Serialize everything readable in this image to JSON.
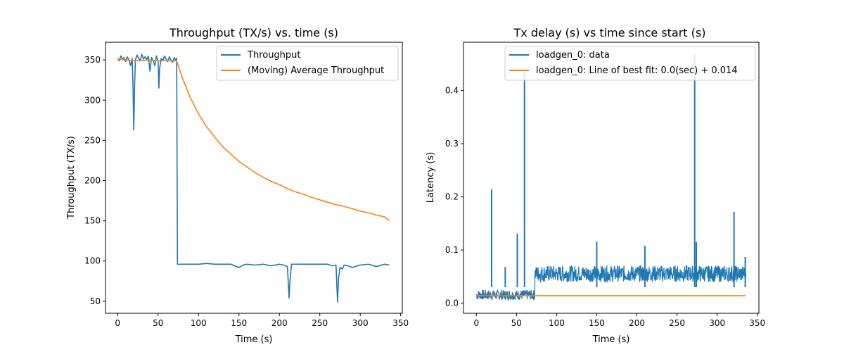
{
  "chart_data": [
    {
      "type": "line",
      "title": "Throughput (TX/s) vs. time (s)",
      "xlabel": "Time (s)",
      "ylabel": "Throughput (TX/s)",
      "xlim": [
        -15,
        352
      ],
      "ylim": [
        35,
        372
      ],
      "xticks": [
        0,
        50,
        100,
        150,
        200,
        250,
        300,
        350
      ],
      "yticks": [
        50,
        100,
        150,
        200,
        250,
        300,
        350
      ],
      "legend_position": "top-right",
      "series": [
        {
          "name": "Throughput",
          "color": "#1f77b4",
          "x": [
            0,
            2,
            4,
            6,
            8,
            10,
            12,
            14,
            16,
            18,
            19,
            20,
            21,
            22,
            24,
            26,
            28,
            30,
            32,
            34,
            36,
            38,
            40,
            42,
            44,
            46,
            48,
            50,
            51,
            52,
            54,
            56,
            58,
            60,
            62,
            64,
            66,
            68,
            70,
            72,
            73,
            74,
            80,
            90,
            100,
            110,
            120,
            130,
            140,
            145,
            150,
            155,
            160,
            170,
            180,
            190,
            200,
            205,
            210,
            211,
            212,
            213,
            215,
            220,
            230,
            240,
            250,
            260,
            265,
            270,
            271,
            272,
            273,
            275,
            278,
            280,
            285,
            290,
            300,
            310,
            320,
            330,
            336
          ],
          "y": [
            352,
            349,
            355,
            351,
            353,
            348,
            354,
            350,
            343,
            352,
            318,
            263,
            320,
            350,
            356,
            352,
            349,
            357,
            351,
            354,
            350,
            355,
            336,
            353,
            349,
            343,
            355,
            348,
            315,
            340,
            352,
            349,
            355,
            351,
            348,
            354,
            350,
            347,
            353,
            349,
            352,
            96,
            96,
            96,
            96,
            97,
            96,
            96,
            96,
            94,
            92,
            95,
            96,
            95,
            96,
            94,
            96,
            95,
            93,
            72,
            54,
            75,
            96,
            96,
            96,
            96,
            96,
            96,
            94,
            95,
            70,
            49,
            78,
            92,
            90,
            95,
            94,
            92,
            95,
            96,
            93,
            96,
            95
          ]
        },
        {
          "name": "(Moving) Average Throughput",
          "color": "#ff7f0e",
          "x": [
            0,
            10,
            20,
            30,
            40,
            50,
            60,
            70,
            73,
            80,
            90,
            100,
            110,
            120,
            130,
            140,
            150,
            160,
            170,
            180,
            190,
            200,
            210,
            220,
            230,
            240,
            250,
            260,
            270,
            280,
            290,
            300,
            310,
            320,
            330,
            336
          ],
          "y": [
            351,
            350,
            349,
            349,
            350,
            349,
            349,
            349,
            349,
            328,
            303,
            283,
            267,
            254,
            242,
            233,
            224,
            217,
            210,
            204,
            199,
            195,
            190,
            186,
            183,
            179,
            176,
            173,
            170,
            168,
            165,
            162,
            160,
            157,
            155,
            150
          ]
        }
      ]
    },
    {
      "type": "line",
      "title": "Tx delay (s) vs time since start (s)",
      "xlabel": "Time (s)",
      "ylabel": "Latency (s)",
      "xlim": [
        -16,
        352
      ],
      "ylim": [
        -0.019,
        0.491
      ],
      "xticks": [
        0,
        50,
        100,
        150,
        200,
        250,
        300,
        350
      ],
      "yticks": [
        0.0,
        0.1,
        0.2,
        0.3,
        0.4
      ],
      "ytick_labels": [
        "0.0",
        "0.1",
        "0.2",
        "0.3",
        "0.4"
      ],
      "legend_position": "top-right",
      "series": [
        {
          "name": "loadgen_0: data",
          "color": "#1f77b4",
          "band": [
            {
              "x0": 0,
              "x1": 73,
              "ymin": 0.006,
              "ymax": 0.025
            },
            {
              "x0": 73,
              "x1": 336,
              "ymin": 0.04,
              "ymax": 0.071
            }
          ],
          "spikes": [
            {
              "x": 19,
              "y": 0.214
            },
            {
              "x": 36,
              "y": 0.068
            },
            {
              "x": 51,
              "y": 0.131
            },
            {
              "x": 60,
              "y": 0.435
            },
            {
              "x": 150,
              "y": 0.116
            },
            {
              "x": 210,
              "y": 0.108
            },
            {
              "x": 272,
              "y": 0.47
            },
            {
              "x": 274,
              "y": 0.115
            },
            {
              "x": 321,
              "y": 0.172
            },
            {
              "x": 335,
              "y": 0.087
            }
          ]
        },
        {
          "name": "loadgen_0: Line of best fit: 0.0(sec) + 0.014",
          "color": "#ff7f0e",
          "x": [
            0,
            336
          ],
          "y": [
            0.014,
            0.014
          ]
        }
      ]
    }
  ]
}
